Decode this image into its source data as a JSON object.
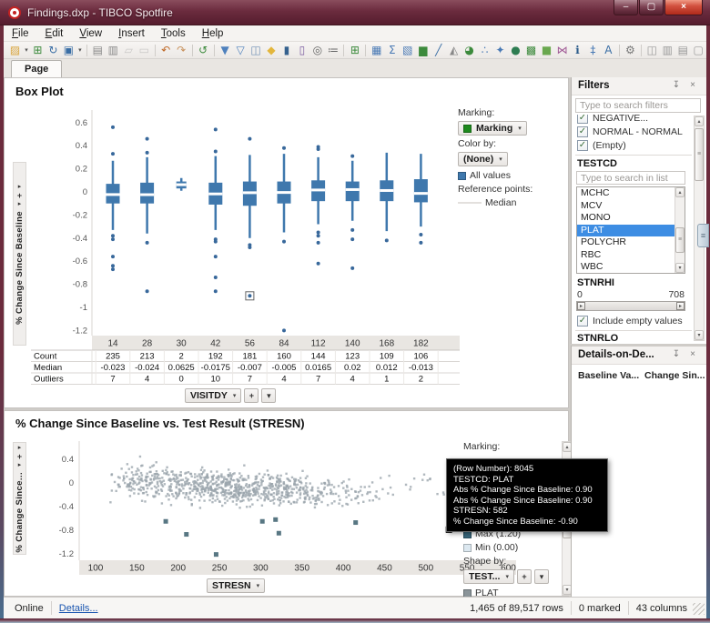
{
  "window": {
    "title": "Findings.dxp - TIBCO Spotfire",
    "controls": [
      {
        "name": "minimize",
        "glyph": "–"
      },
      {
        "name": "maximize",
        "glyph": "▢"
      },
      {
        "name": "close",
        "glyph": "×"
      }
    ]
  },
  "menu": {
    "items": [
      "File",
      "Edit",
      "View",
      "Insert",
      "Tools",
      "Help"
    ]
  },
  "toolbar": {
    "groups": [
      [
        {
          "name": "open",
          "glyph": "▨",
          "color": "#d9a43c",
          "caret": true
        },
        {
          "name": "add-data-tables",
          "glyph": "⊞",
          "color": "#3c8a3c"
        },
        {
          "name": "reload-data",
          "glyph": "↻",
          "color": "#3a6ea5"
        },
        {
          "name": "save",
          "glyph": "▣",
          "color": "#3a6ea5",
          "caret": true
        }
      ],
      [
        {
          "name": "print",
          "glyph": "▤",
          "color": "#8a8a8a"
        },
        {
          "name": "export",
          "glyph": "▥",
          "color": "#8a8a8a"
        },
        {
          "name": "copy",
          "glyph": "▱",
          "color": "#9a9a9a",
          "enabled": false
        },
        {
          "name": "paste",
          "glyph": "▭",
          "color": "#9a9a9a",
          "enabled": false
        }
      ],
      [
        {
          "name": "undo",
          "glyph": "↶",
          "color": "#c06a28"
        },
        {
          "name": "redo",
          "glyph": "↷",
          "color": "#c9935f"
        }
      ],
      [
        {
          "name": "undo-all",
          "glyph": "↺",
          "color": "#3c8a3c"
        }
      ],
      [
        {
          "name": "filters",
          "glyph": "▼",
          "color": "#4f81bd"
        },
        {
          "name": "filter-scheme",
          "glyph": "▽",
          "color": "#4f81bd"
        },
        {
          "name": "filter-organize",
          "glyph": "◫",
          "color": "#6f8fb5"
        },
        {
          "name": "tag",
          "glyph": "◆",
          "color": "#e3b63c"
        },
        {
          "name": "bookmarks",
          "glyph": "▮",
          "color": "#35618e"
        },
        {
          "name": "collaboration",
          "glyph": "▯",
          "color": "#7a5aa0"
        },
        {
          "name": "find",
          "glyph": "◎",
          "color": "#666666"
        },
        {
          "name": "lists",
          "glyph": "≔",
          "color": "#666666"
        }
      ],
      [
        {
          "name": "insert-columns",
          "glyph": "⊞",
          "color": "#3c8a3c"
        }
      ],
      [
        {
          "name": "table",
          "glyph": "▦",
          "color": "#4a7ab5"
        },
        {
          "name": "summary-table",
          "glyph": "Σ",
          "color": "#4a7ab5"
        },
        {
          "name": "cross-table",
          "glyph": "▧",
          "color": "#4a7ab5"
        },
        {
          "name": "bar-chart",
          "glyph": "▆",
          "color": "#3c8a3c"
        },
        {
          "name": "line-chart",
          "glyph": "╱",
          "color": "#3a6ea5"
        },
        {
          "name": "combination-chart",
          "glyph": "◭",
          "color": "#888888"
        },
        {
          "name": "pie-chart",
          "glyph": "◕",
          "color": "#3c8a3c"
        },
        {
          "name": "scatter-plot",
          "glyph": "∴",
          "color": "#4a7ab5"
        },
        {
          "name": "3d-scatter-plot",
          "glyph": "✦",
          "color": "#4a7ab5"
        },
        {
          "name": "map-chart",
          "glyph": "●",
          "color": "#2e7d52"
        },
        {
          "name": "treemap",
          "glyph": "▩",
          "color": "#3c8a3c"
        },
        {
          "name": "heat-map",
          "glyph": "■",
          "color": "#6aa84f"
        },
        {
          "name": "parallel-coordinates",
          "glyph": "⋈",
          "color": "#a05a96"
        },
        {
          "name": "kpi-chart",
          "glyph": "ℹ",
          "color": "#2a5a8a"
        },
        {
          "name": "box-plot",
          "glyph": "‡",
          "color": "#4a7ab5"
        },
        {
          "name": "text-area",
          "glyph": "A",
          "color": "#3a6ea5"
        }
      ],
      [
        {
          "name": "document-properties",
          "glyph": "⚙",
          "color": "#777777"
        }
      ],
      [
        {
          "name": "layout-side-by-side",
          "glyph": "◫",
          "color": "#999999"
        },
        {
          "name": "layout-columns",
          "glyph": "▥",
          "color": "#999999"
        },
        {
          "name": "layout-rows",
          "glyph": "▤",
          "color": "#999999"
        },
        {
          "name": "layout-maximize",
          "glyph": "▢",
          "color": "#999999"
        }
      ]
    ]
  },
  "tabs": {
    "items": [
      {
        "label": "Page",
        "active": true
      }
    ]
  },
  "glyphs": {
    "caret_down": "▾",
    "caret_right": "▸",
    "caret_up": "▴",
    "plus": "+",
    "check": "✓",
    "pin": "↧",
    "close": "×",
    "scroll_up": "▲",
    "scroll_down": "▼",
    "grip": "≡"
  },
  "boxplot_panel": {
    "legend": {
      "marking_label": "Marking:",
      "marking_value": "Marking",
      "color_by_label": "Color by:",
      "color_by_value": "(None)",
      "all_values_label": "All values",
      "reference_points_label": "Reference points:",
      "reference_line_label": "Median"
    }
  },
  "scatter_panel": {
    "legend": {
      "marking_label": "Marking:",
      "max_label": "Max (1.20)",
      "min_label": "Min (0.00)",
      "shape_by_label": "Shape by:",
      "shape_by_value": "TEST...",
      "shape_item_label": "PLAT"
    }
  },
  "tooltip": {
    "lines": [
      "(Row Number): 8045",
      "TESTCD: PLAT",
      "Abs % Change Since Baseline: 0.90",
      "Abs % Change Since Baseline: 0.90",
      "STRESN: 582",
      "% Change Since Baseline: -0.90"
    ]
  },
  "filters": {
    "title": "Filters",
    "search_placeholder": "Type to search filters",
    "checkbox_items": [
      {
        "label": "NEGATIVE...",
        "checked": true,
        "clipped": true
      },
      {
        "label": "NORMAL - NORMAL",
        "checked": true
      },
      {
        "label": "(Empty)",
        "checked": true
      }
    ],
    "testcd": {
      "header": "TESTCD",
      "search_placeholder": "Type to search in list",
      "items": [
        "MCHC",
        "MCV",
        "MONO",
        "PLAT",
        "POLYCHR",
        "RBC",
        "WBC"
      ],
      "selected": "PLAT"
    },
    "stnrhi": {
      "header": "STNRHI",
      "min": "0",
      "max": "708",
      "include_empty_label": "Include empty values",
      "include_empty_checked": true
    },
    "stnrlo": {
      "header": "STNRLO"
    }
  },
  "details_panel": {
    "title": "Details-on-De...",
    "columns": [
      "Baseline Va...",
      "Change Sin..."
    ]
  },
  "status_bar": {
    "online": "Online",
    "details_link": "Details...",
    "rows_info": "1,465 of 89,517 rows",
    "marked_info": "0 marked",
    "columns_info": "43 columns"
  },
  "colors": {
    "titlebar": "#6b2b3e",
    "box_fill": "#3f78ad",
    "outlier_dot": "#38689b",
    "scatter_point": "#9aa4ac",
    "scatter_outlier": "#4a6b78",
    "marked_point": "#3a5a66",
    "selection": "#3d8de3",
    "marking_green": "#1e8a1e",
    "max_square": "#39687d",
    "min_square": "#dce8f0",
    "plat_square": "#8a9499"
  },
  "chart_data": [
    {
      "type": "boxplot",
      "title": "Box Plot",
      "xlabel": "VISITDY",
      "ylabel": "% Change Since Baseline",
      "ylim": [
        -1.32,
        0.68
      ],
      "yticks": [
        0.6,
        0.4,
        0.2,
        0,
        -0.2,
        -0.4,
        -0.6,
        -0.8,
        -1,
        -1.2
      ],
      "categories": [
        "14",
        "28",
        "30",
        "42",
        "56",
        "84",
        "112",
        "140",
        "168",
        "182"
      ],
      "boxes": [
        {
          "q1": -0.1,
          "q3": 0.07,
          "median": -0.023,
          "whisker_low": -0.33,
          "whisker_high": 0.27,
          "outliers": [
            0.56,
            0.33,
            -0.38,
            -0.41,
            -0.56,
            -0.64,
            -0.67
          ]
        },
        {
          "q1": -0.1,
          "q3": 0.08,
          "median": -0.024,
          "whisker_low": -0.36,
          "whisker_high": 0.3,
          "outliers": [
            0.46,
            0.34,
            -0.44,
            -0.86
          ]
        },
        {
          "q1": 0.03,
          "q3": 0.09,
          "median": 0.0625,
          "whisker_low": 0.01,
          "whisker_high": 0.12,
          "outliers": []
        },
        {
          "q1": -0.11,
          "q3": 0.08,
          "median": -0.0175,
          "whisker_low": -0.33,
          "whisker_high": 0.31,
          "outliers": [
            0.54,
            0.35,
            -0.41,
            -0.43,
            -0.56,
            -0.74,
            -0.86
          ]
        },
        {
          "q1": -0.12,
          "q3": 0.09,
          "median": -0.007,
          "whisker_low": -0.4,
          "whisker_high": 0.32,
          "outliers": [
            0.46,
            -0.46,
            -0.48
          ],
          "boxed_outlier": -0.9
        },
        {
          "q1": -0.1,
          "q3": 0.09,
          "median": -0.005,
          "whisker_low": -0.35,
          "whisker_high": 0.33,
          "outliers": [
            0.38,
            -0.43,
            -1.2
          ]
        },
        {
          "q1": -0.08,
          "q3": 0.1,
          "median": 0.0165,
          "whisker_low": -0.28,
          "whisker_high": 0.3,
          "outliers": [
            0.39,
            0.37,
            -0.35,
            -0.38,
            -0.44,
            -0.62
          ]
        },
        {
          "q1": -0.08,
          "q3": 0.09,
          "median": 0.02,
          "whisker_low": -0.25,
          "whisker_high": 0.27,
          "outliers": [
            0.31,
            -0.33,
            -0.41,
            -0.66
          ]
        },
        {
          "q1": -0.08,
          "q3": 0.1,
          "median": 0.012,
          "whisker_low": -0.34,
          "whisker_high": 0.34,
          "outliers": [
            -0.42
          ]
        },
        {
          "q1": -0.09,
          "q3": 0.11,
          "median": -0.013,
          "whisker_low": -0.3,
          "whisker_high": 0.33,
          "outliers": [
            -0.37,
            -0.44
          ]
        }
      ],
      "summary_table": {
        "row_headers": [
          "Count",
          "Median",
          "Outliers"
        ],
        "rows": [
          [
            "235",
            "213",
            "2",
            "192",
            "181",
            "160",
            "144",
            "123",
            "109",
            "106"
          ],
          [
            "-0.023",
            "-0.024",
            "0.0625",
            "-0.0175",
            "-0.007",
            "-0.005",
            "0.0165",
            "0.02",
            "0.012",
            "-0.013"
          ],
          [
            "7",
            "4",
            "0",
            "10",
            "7",
            "4",
            "7",
            "4",
            "1",
            "2"
          ]
        ]
      }
    },
    {
      "type": "scatter",
      "title": "% Change Since Baseline vs. Test Result (STRESN)",
      "xlabel": "STRESN",
      "ylabel": "% Change Since Baseline",
      "ylabel_display": "% Change Since...",
      "xlim": [
        75,
        615
      ],
      "ylim": [
        -1.35,
        0.62
      ],
      "xticks": [
        100,
        150,
        200,
        250,
        300,
        350,
        400,
        450,
        500,
        550,
        600
      ],
      "yticks": [
        0.4,
        0,
        -0.4,
        -0.8,
        -1.2
      ],
      "cloud": {
        "note": "approximate unlabeled point cloud of 1,465 filtered rows",
        "count": 880,
        "x_range": [
          115,
          460
        ],
        "x_skew": 1.25,
        "y_intercept": 0.05,
        "y_slope_per_x": -0.00075,
        "y_noise_sd": 0.13,
        "y_clamp": [
          -0.52,
          0.58
        ],
        "sparse_right": {
          "count": 22,
          "x_range": [
            440,
            535
          ],
          "y_range": [
            -0.25,
            0.15
          ]
        },
        "seed": 20
      },
      "outliers": [
        {
          "x": 185,
          "y": -0.65
        },
        {
          "x": 210,
          "y": -0.87
        },
        {
          "x": 246,
          "y": -1.21
        },
        {
          "x": 302,
          "y": -0.65
        },
        {
          "x": 318,
          "y": -0.62
        },
        {
          "x": 322,
          "y": -0.85
        },
        {
          "x": 415,
          "y": -0.67
        }
      ],
      "marked_point": {
        "x": 528,
        "y": -0.79
      }
    }
  ]
}
